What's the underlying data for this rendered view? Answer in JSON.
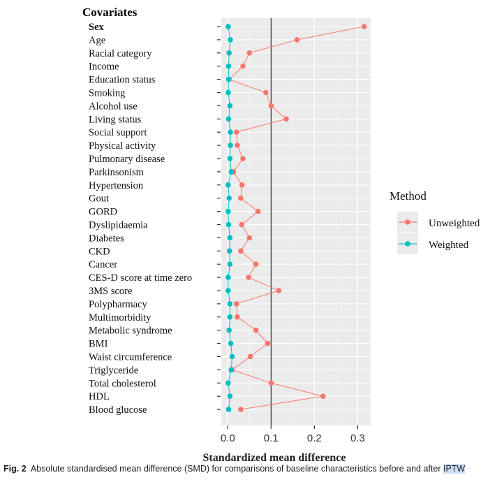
{
  "chart_data": {
    "type": "scatter",
    "title": "Covariates",
    "xlabel": "Standardized mean difference",
    "ylabel": "Covariates",
    "xlim": [
      -0.015,
      0.33
    ],
    "xticks": [
      "0.0",
      "0.1",
      "0.2",
      "0.3"
    ],
    "xtick_values": [
      0.0,
      0.1,
      0.2,
      0.3
    ],
    "threshold": 0.1,
    "grid": true,
    "legend_title": "Method",
    "legend_position": "right",
    "categories": [
      "Sex",
      "Age",
      "Racial category",
      "Income",
      "Education status",
      "Smoking",
      "Alcohol use",
      "Living status",
      "Social support",
      "Physical activity",
      "Pulmonary disease",
      "Parkinsonism",
      "Hypertension",
      "Gout",
      "GORD",
      "Dyslipidaemia",
      "Diabetes",
      "CKD",
      "Cancer",
      "CES-D score at time zero",
      "3MS score",
      "Polypharmacy",
      "Multimorbidity",
      "Metabolic syndrome",
      "BMI",
      "Waist circumference",
      "Triglyceride",
      "Total cholesterol",
      "HDL",
      "Blood glucose"
    ],
    "series": [
      {
        "name": "Unweighted",
        "color": "#f8766d",
        "values": [
          0.315,
          0.16,
          0.05,
          0.035,
          0.003,
          0.088,
          0.1,
          0.135,
          0.02,
          0.022,
          0.035,
          0.013,
          0.033,
          0.03,
          0.07,
          0.032,
          0.05,
          0.03,
          0.065,
          0.048,
          0.118,
          0.02,
          0.022,
          0.065,
          0.092,
          0.052,
          0.01,
          0.1,
          0.22,
          0.03
        ]
      },
      {
        "name": "Weighted",
        "color": "#00bfc4",
        "values": [
          0.001,
          0.006,
          0.003,
          0.002,
          0.002,
          0.001,
          0.005,
          0.002,
          0.006,
          0.006,
          0.005,
          0.008,
          0.001,
          0.003,
          0.001,
          0.002,
          0.005,
          0.004,
          0.005,
          0.001,
          0.001,
          0.005,
          0.005,
          0.003,
          0.007,
          0.01,
          0.008,
          0.001,
          0.005,
          0.002
        ]
      }
    ]
  },
  "caption": {
    "label": "Fig. 2",
    "text": "Absolute standardised mean difference (SMD) for comparisons of baseline characteristics before and after ",
    "highlight": "IPTW"
  }
}
